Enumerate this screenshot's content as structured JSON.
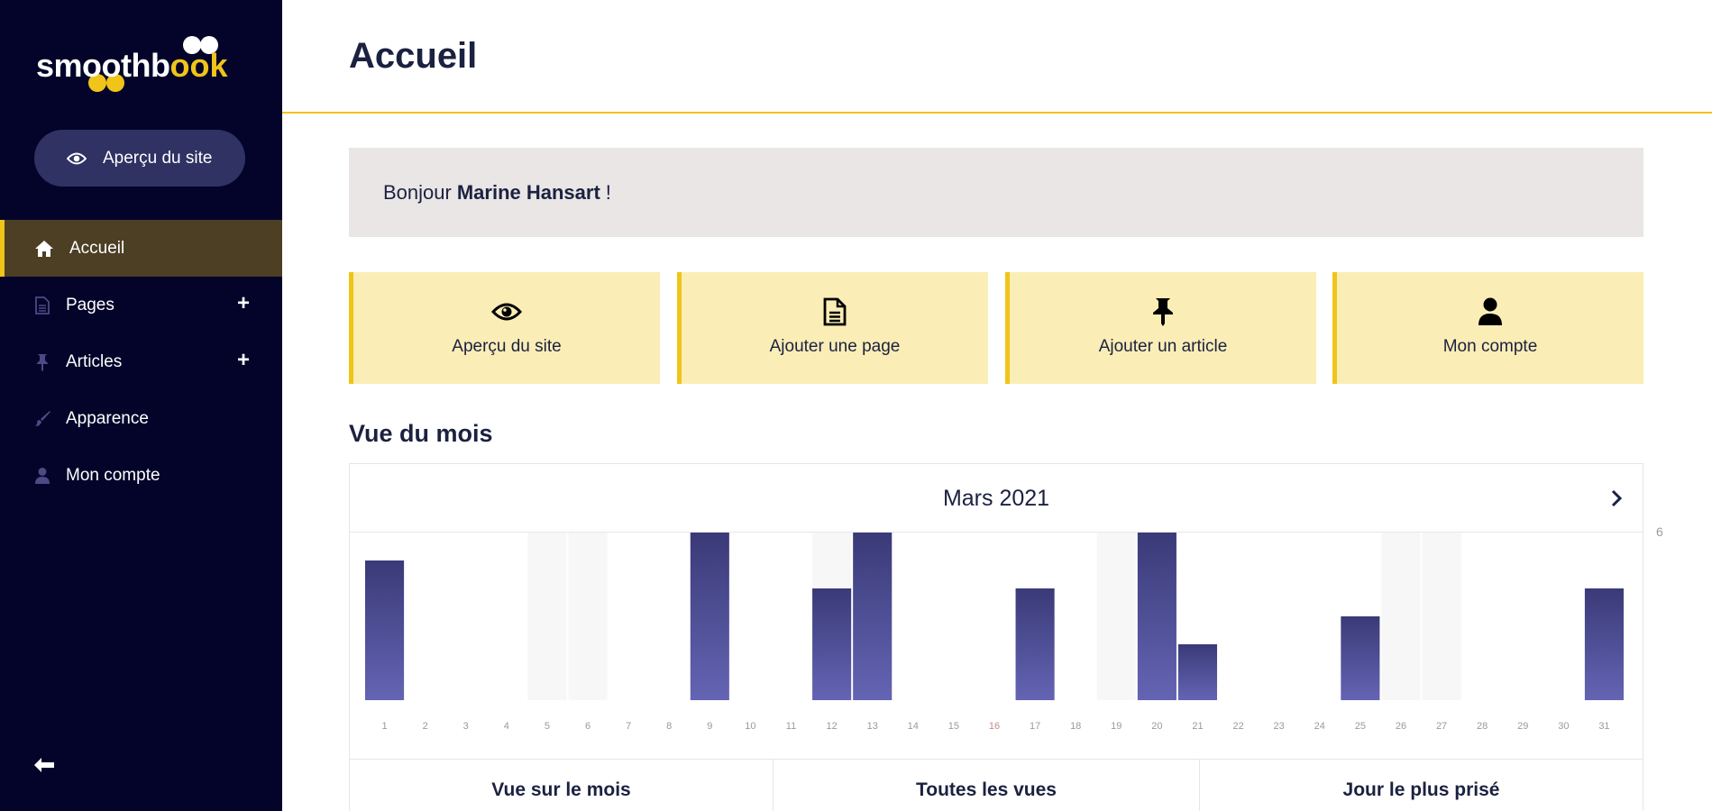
{
  "brand": {
    "part1": "smoothb",
    "part2": "k",
    "logo_text": "smoothbook"
  },
  "sidebar": {
    "preview_button": {
      "label": "Aperçu du site",
      "icon": "eye-icon"
    },
    "items": [
      {
        "label": "Accueil",
        "icon": "home-icon",
        "active": true,
        "expandable": false
      },
      {
        "label": "Pages",
        "icon": "file-icon",
        "active": false,
        "expandable": true
      },
      {
        "label": "Articles",
        "icon": "pin-icon",
        "active": false,
        "expandable": true
      },
      {
        "label": "Apparence",
        "icon": "brush-icon",
        "active": false,
        "expandable": false
      },
      {
        "label": "Mon compte",
        "icon": "user-icon",
        "active": false,
        "expandable": false
      }
    ],
    "plus_symbol": "+",
    "collapse_icon": "arrow-left-icon"
  },
  "header": {
    "title": "Accueil"
  },
  "greeting": {
    "prefix": "Bonjour",
    "name": "Marine Hansart",
    "suffix": "!"
  },
  "quick_actions": [
    {
      "label": "Aperçu du site",
      "icon": "eye-icon"
    },
    {
      "label": "Ajouter une page",
      "icon": "file-icon"
    },
    {
      "label": "Ajouter un article",
      "icon": "pin-icon"
    },
    {
      "label": "Mon compte",
      "icon": "user-icon"
    }
  ],
  "month_view": {
    "title": "Vue du mois",
    "month_label": "Mars 2021",
    "next_icon": "chevron-right-icon",
    "stats": [
      {
        "label": "Vue sur le mois"
      },
      {
        "label": "Toutes les vues"
      },
      {
        "label": "Jour le plus prisé"
      }
    ]
  },
  "colors": {
    "sidebar_bg": "#04042b",
    "accent": "#f0c419",
    "bar_top": "#3a3a78",
    "bar_bottom": "#6464b4",
    "weekend_bg": "#f7f7f7"
  },
  "chart_data": {
    "type": "bar",
    "title": "",
    "xlabel": "",
    "ylabel": "",
    "ylim": [
      0,
      6
    ],
    "y_max_label": "6",
    "categories": [
      "1",
      "2",
      "3",
      "4",
      "5",
      "6",
      "7",
      "8",
      "9",
      "10",
      "11",
      "12",
      "13",
      "14",
      "15",
      "16",
      "17",
      "18",
      "19",
      "20",
      "21",
      "22",
      "23",
      "24",
      "25",
      "26",
      "27",
      "28",
      "29",
      "30",
      "31"
    ],
    "values": [
      5,
      0,
      0,
      0,
      0,
      0,
      0,
      0,
      6,
      0,
      0,
      4,
      6,
      0,
      0,
      0,
      4,
      0,
      0,
      6,
      2,
      0,
      0,
      0,
      3,
      0,
      0,
      0,
      0,
      0,
      4
    ],
    "weekend_days": [
      "5",
      "6",
      "12",
      "19",
      "26",
      "27"
    ],
    "highlight_days": [
      "16"
    ],
    "grid": false,
    "legend": "none"
  }
}
